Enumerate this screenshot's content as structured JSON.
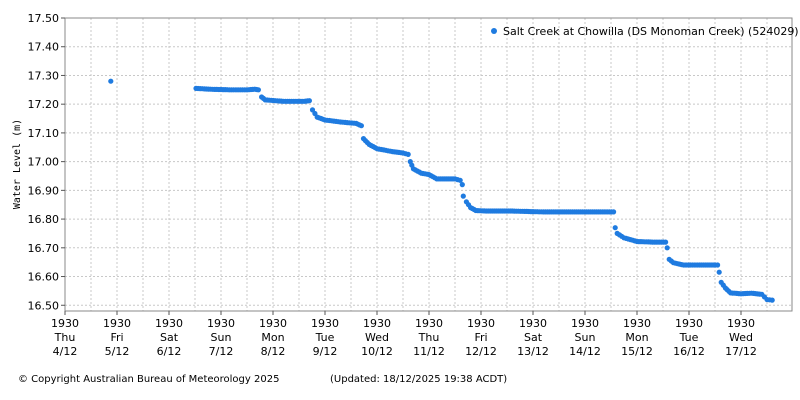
{
  "chart_data": {
    "type": "scatter",
    "ylabel": "Water Level (m)",
    "xlabel": "",
    "ylim": [
      16.48,
      17.5
    ],
    "yticks": [
      "16.50",
      "16.60",
      "16.70",
      "16.80",
      "16.90",
      "17.00",
      "17.10",
      "17.20",
      "17.30",
      "17.40",
      "17.50"
    ],
    "xlim_days": [
      0,
      13.6
    ],
    "xticks": [
      {
        "time": "1930",
        "day": "Thu",
        "date": "4/12"
      },
      {
        "time": "1930",
        "day": "Fri",
        "date": "5/12"
      },
      {
        "time": "1930",
        "day": "Sat",
        "date": "6/12"
      },
      {
        "time": "1930",
        "day": "Sun",
        "date": "7/12"
      },
      {
        "time": "1930",
        "day": "Mon",
        "date": "8/12"
      },
      {
        "time": "1930",
        "day": "Tue",
        "date": "9/12"
      },
      {
        "time": "1930",
        "day": "Wed",
        "date": "10/12"
      },
      {
        "time": "1930",
        "day": "Thu",
        "date": "11/12"
      },
      {
        "time": "1930",
        "day": "Fri",
        "date": "12/12"
      },
      {
        "time": "1930",
        "day": "Sat",
        "date": "13/12"
      },
      {
        "time": "1930",
        "day": "Sun",
        "date": "14/12"
      },
      {
        "time": "1930",
        "day": "Mon",
        "date": "15/12"
      },
      {
        "time": "1930",
        "day": "Tue",
        "date": "16/12"
      },
      {
        "time": "1930",
        "day": "Wed",
        "date": "17/12"
      }
    ],
    "grid": true,
    "legend_position": "top-right",
    "series": [
      {
        "name": "Salt Creek at Chowilla (DS Monoman Creek) (524029)",
        "color": "#1f7be0",
        "points": [
          [
            0.88,
            17.28
          ],
          [
            2.52,
            17.255
          ],
          [
            2.8,
            17.252
          ],
          [
            3.2,
            17.25
          ],
          [
            3.5,
            17.25
          ],
          [
            3.65,
            17.252
          ],
          [
            3.72,
            17.25
          ],
          [
            3.78,
            17.225
          ],
          [
            3.85,
            17.215
          ],
          [
            4.2,
            17.21
          ],
          [
            4.6,
            17.21
          ],
          [
            4.7,
            17.212
          ],
          [
            4.76,
            17.18
          ],
          [
            4.85,
            17.155
          ],
          [
            5.0,
            17.145
          ],
          [
            5.3,
            17.138
          ],
          [
            5.6,
            17.133
          ],
          [
            5.7,
            17.125
          ],
          [
            5.74,
            17.08
          ],
          [
            5.85,
            17.06
          ],
          [
            6.0,
            17.045
          ],
          [
            6.3,
            17.035
          ],
          [
            6.5,
            17.03
          ],
          [
            6.6,
            17.025
          ],
          [
            6.64,
            17.0
          ],
          [
            6.7,
            16.975
          ],
          [
            6.85,
            16.96
          ],
          [
            7.0,
            16.955
          ],
          [
            7.15,
            16.94
          ],
          [
            7.5,
            16.94
          ],
          [
            7.6,
            16.935
          ],
          [
            7.64,
            16.92
          ],
          [
            7.66,
            16.88
          ],
          [
            7.72,
            16.86
          ],
          [
            7.8,
            16.84
          ],
          [
            7.9,
            16.83
          ],
          [
            8.1,
            16.828
          ],
          [
            8.6,
            16.828
          ],
          [
            9.2,
            16.825
          ],
          [
            9.8,
            16.825
          ],
          [
            10.3,
            16.825
          ],
          [
            10.55,
            16.825
          ],
          [
            10.58,
            16.77
          ],
          [
            10.62,
            16.75
          ],
          [
            10.75,
            16.735
          ],
          [
            11.0,
            16.722
          ],
          [
            11.3,
            16.72
          ],
          [
            11.55,
            16.72
          ],
          [
            11.58,
            16.7
          ],
          [
            11.62,
            16.66
          ],
          [
            11.7,
            16.648
          ],
          [
            11.9,
            16.64
          ],
          [
            12.2,
            16.64
          ],
          [
            12.5,
            16.64
          ],
          [
            12.55,
            16.64
          ],
          [
            12.58,
            16.615
          ],
          [
            12.62,
            16.58
          ],
          [
            12.7,
            16.56
          ],
          [
            12.8,
            16.543
          ],
          [
            13.0,
            16.54
          ],
          [
            13.2,
            16.542
          ],
          [
            13.4,
            16.538
          ],
          [
            13.5,
            16.52
          ],
          [
            13.6,
            16.518
          ]
        ]
      }
    ]
  },
  "footer": {
    "copyright": "© Copyright Australian Bureau of Meteorology 2025",
    "updated": "(Updated: 18/12/2025 19:38 ACDT)"
  }
}
